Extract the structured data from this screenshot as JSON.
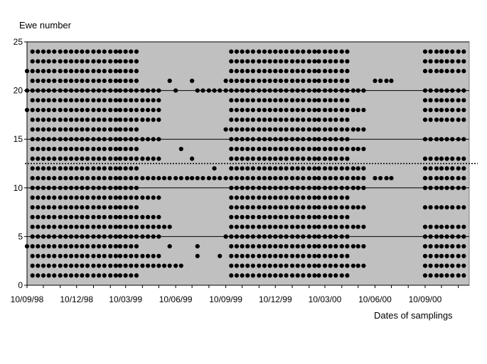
{
  "chart_data": {
    "type": "scatter",
    "title": "",
    "xlabel": "Dates of samplings",
    "ylabel": "Ewe number",
    "x_ticks": [
      "10/09/98",
      "10/12/98",
      "10/03/99",
      "10/06/99",
      "10/09/99",
      "10/12/99",
      "10/03/00",
      "10/06/00",
      "10/09/00"
    ],
    "x_range": [
      "1998-09-10",
      "2000-11-30"
    ],
    "y_ticks": [
      0,
      5,
      10,
      15,
      20,
      25
    ],
    "ylim": [
      0,
      25
    ],
    "grid": "horizontal",
    "threshold_line": {
      "y": 12.5,
      "style": "dotted"
    },
    "colors": {
      "plot_background": "#c0c0c0",
      "marker": "#000000",
      "gridline": "#000000"
    },
    "groups": [
      {
        "ewes": [
          1,
          2,
          3,
          4,
          5,
          6,
          7,
          8,
          9,
          10,
          11,
          12,
          13,
          14,
          15,
          16,
          17,
          18,
          19,
          20,
          21,
          22,
          23,
          24
        ],
        "dates": [
          "1998-09-20",
          "1998-09-30",
          "1998-10-10",
          "1998-10-20",
          "1998-10-30",
          "1998-11-10",
          "1998-11-20",
          "1998-11-30",
          "1998-12-10",
          "1998-12-20",
          "1998-12-30",
          "1999-01-10",
          "1999-01-20",
          "1999-01-30",
          "1999-02-10",
          "1999-02-20",
          "1999-02-28",
          "1999-03-10",
          "1999-03-20",
          "1999-03-30"
        ]
      },
      {
        "ewes": [
          2,
          3,
          5,
          6,
          7,
          9,
          11,
          13,
          15,
          17,
          18,
          19,
          20
        ],
        "dates": [
          "1999-04-10",
          "1999-04-20",
          "1999-04-30",
          "1999-05-10"
        ]
      },
      {
        "ewes": [
          1,
          2,
          3,
          4,
          5,
          6,
          7,
          8,
          9,
          10,
          11,
          12,
          13,
          14,
          15,
          16,
          17,
          18,
          19,
          20,
          21,
          22,
          23,
          24
        ],
        "dates": [
          "1999-09-20",
          "1999-09-30",
          "1999-10-10",
          "1999-10-20",
          "1999-10-30",
          "1999-11-10",
          "1999-11-20",
          "1999-11-30",
          "1999-12-10",
          "1999-12-20",
          "1999-12-30",
          "2000-01-10",
          "2000-01-20",
          "2000-01-30",
          "2000-02-10",
          "2000-02-20",
          "2000-02-28",
          "2000-03-10",
          "2000-03-20",
          "2000-03-30",
          "2000-04-10",
          "2000-04-20"
        ]
      },
      {
        "ewes": [
          2,
          4,
          6,
          8,
          10,
          11,
          12,
          14,
          16,
          18,
          20
        ],
        "dates": [
          "2000-05-01",
          "2000-05-10",
          "2000-05-20"
        ]
      },
      {
        "ewes": [
          11,
          21
        ],
        "dates": [
          "2000-06-10",
          "2000-06-20",
          "2000-07-01",
          "2000-07-10"
        ]
      },
      {
        "ewes": [
          1,
          2,
          3,
          4,
          5,
          6,
          8,
          10,
          11,
          12,
          13,
          15,
          17,
          18,
          19,
          20,
          22,
          23,
          24
        ],
        "dates": [
          "2000-09-10",
          "2000-09-20",
          "2000-10-01",
          "2000-10-10",
          "2000-10-20",
          "2000-10-30",
          "2000-11-10",
          "2000-11-20"
        ]
      }
    ],
    "points": [
      [
        "1998-09-10",
        4
      ],
      [
        "1998-09-10",
        18
      ],
      [
        "1998-09-10",
        20
      ],
      [
        "1998-09-10",
        22
      ],
      [
        "1999-05-20",
        2
      ],
      [
        "1999-05-20",
        6
      ],
      [
        "1999-05-20",
        11
      ],
      [
        "1999-05-30",
        2
      ],
      [
        "1999-05-30",
        4
      ],
      [
        "1999-05-30",
        6
      ],
      [
        "1999-05-30",
        11
      ],
      [
        "1999-05-30",
        21
      ],
      [
        "1999-06-10",
        2
      ],
      [
        "1999-06-10",
        11
      ],
      [
        "1999-06-10",
        20
      ],
      [
        "1999-06-20",
        2
      ],
      [
        "1999-06-20",
        11
      ],
      [
        "1999-06-20",
        14
      ],
      [
        "1999-07-01",
        11
      ],
      [
        "1999-07-10",
        11
      ],
      [
        "1999-07-10",
        13
      ],
      [
        "1999-07-10",
        21
      ],
      [
        "1999-07-20",
        3
      ],
      [
        "1999-07-20",
        4
      ],
      [
        "1999-07-20",
        11
      ],
      [
        "1999-07-20",
        20
      ],
      [
        "1999-07-30",
        11
      ],
      [
        "1999-07-30",
        20
      ],
      [
        "1999-08-10",
        11
      ],
      [
        "1999-08-10",
        20
      ],
      [
        "1999-08-20",
        11
      ],
      [
        "1999-08-20",
        12
      ],
      [
        "1999-08-20",
        20
      ],
      [
        "1999-08-30",
        11
      ],
      [
        "1999-08-30",
        3
      ],
      [
        "1999-08-30",
        20
      ],
      [
        "1999-09-10",
        5
      ],
      [
        "1999-09-10",
        11
      ],
      [
        "1999-09-10",
        16
      ],
      [
        "1999-09-10",
        20
      ],
      [
        "1999-09-10",
        21
      ]
    ]
  }
}
